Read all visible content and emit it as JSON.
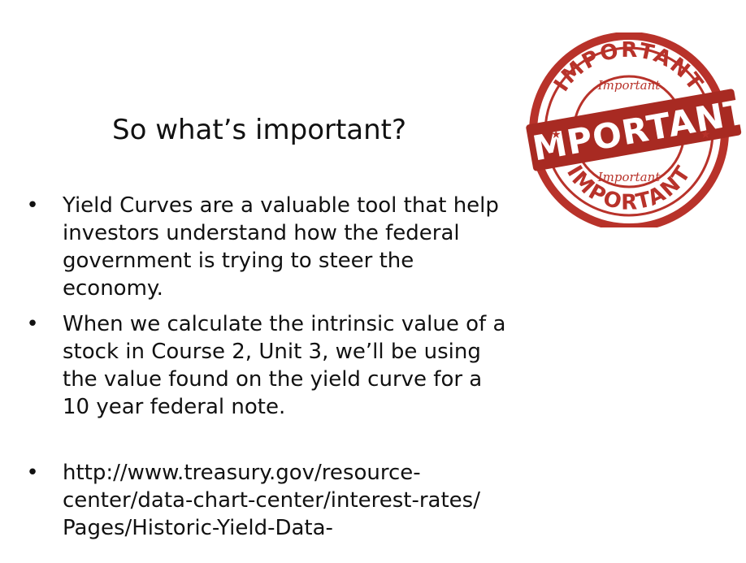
{
  "slide": {
    "title": "So what’s important?",
    "bullet_glyph": "•",
    "bullets": [
      {
        "lines": [
          "Yield Curves are a valuable tool that help",
          "investors understand how the federal",
          "government is trying to steer the",
          "economy."
        ]
      },
      {
        "lines": [
          "When we calculate the intrinsic value of a",
          "stock in Course 2, Unit 3, we’ll be using",
          "the value found on the yield curve for a",
          "10 year federal note."
        ]
      },
      {
        "lines": [
          "http://www.treasury.gov/resource-",
          "center/data-chart-center/interest-rates/",
          "Pages/Historic-Yield-Data-"
        ]
      }
    ]
  },
  "stamp": {
    "top_text": "IMPORTANT",
    "banner_text": "IMPORTANT",
    "bottom_text": "IMPORTANT",
    "script_top": "Important",
    "script_bottom": "Important",
    "color": "#b8322a",
    "banner_color": "#a82a22",
    "ink_light": "#ffffff"
  }
}
